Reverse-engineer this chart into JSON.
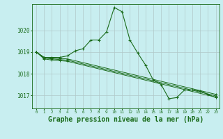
{
  "background_color": "#c8eef0",
  "plot_bg_color": "#c8eef0",
  "grid_color": "#b0c8c8",
  "line_color": "#1a6b1a",
  "xlabel": "Graphe pression niveau de la mer (hPa)",
  "xlabel_fontsize": 7,
  "xtick_labels": [
    "0",
    "1",
    "2",
    "3",
    "4",
    "5",
    "6",
    "7",
    "8",
    "9",
    "10",
    "11",
    "12",
    "13",
    "14",
    "15",
    "16",
    "17",
    "18",
    "19",
    "20",
    "21",
    "22",
    "23"
  ],
  "ytick_vals": [
    1017,
    1018,
    1019,
    1020
  ],
  "ylim": [
    1016.4,
    1021.2
  ],
  "xlim": [
    -0.5,
    23.5
  ],
  "series": [
    {
      "x": [
        0,
        1,
        2,
        3,
        4,
        5,
        6,
        7,
        8,
        9,
        10,
        11,
        12,
        13,
        14,
        15,
        16,
        17,
        18,
        19,
        20,
        21,
        22,
        23
      ],
      "y": [
        1019.0,
        1018.75,
        1018.75,
        1018.75,
        1018.82,
        1019.05,
        1019.15,
        1019.55,
        1019.55,
        1019.92,
        1021.05,
        1020.85,
        1019.55,
        1018.95,
        1018.4,
        1017.7,
        1017.5,
        1016.85,
        1016.9,
        1017.25,
        1017.25,
        1017.2,
        1017.05,
        1016.9
      ]
    },
    {
      "x": [
        0,
        1,
        2,
        3,
        4,
        23
      ],
      "y": [
        1019.0,
        1018.75,
        1018.72,
        1018.7,
        1018.68,
        1017.05
      ]
    },
    {
      "x": [
        0,
        1,
        2,
        3,
        4,
        23
      ],
      "y": [
        1019.0,
        1018.72,
        1018.68,
        1018.65,
        1018.62,
        1016.98
      ]
    },
    {
      "x": [
        0,
        1,
        2,
        3,
        4,
        23
      ],
      "y": [
        1019.0,
        1018.68,
        1018.63,
        1018.6,
        1018.57,
        1016.92
      ]
    }
  ]
}
